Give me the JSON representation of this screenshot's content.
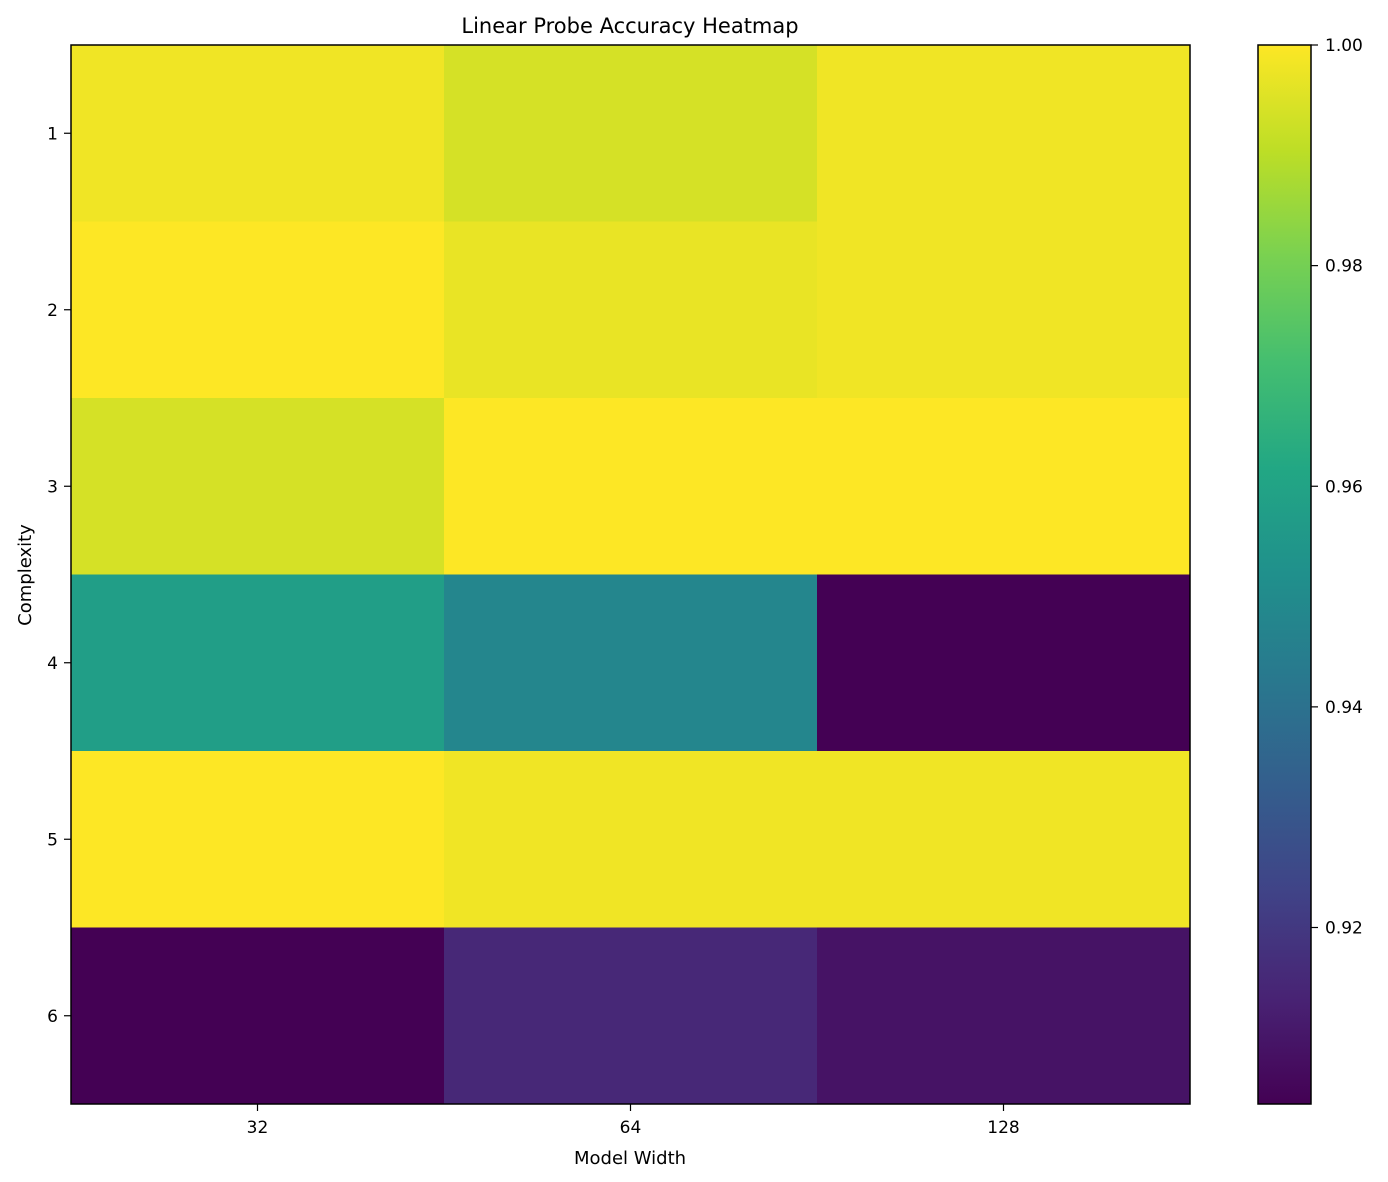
{
  "chart_data": {
    "type": "heatmap",
    "title": "Linear Probe Accuracy Heatmap",
    "xlabel": "Model Width",
    "ylabel": "Complexity",
    "x_categories": [
      "32",
      "64",
      "128"
    ],
    "y_categories": [
      "1",
      "2",
      "3",
      "4",
      "5",
      "6"
    ],
    "values": [
      [
        0.998,
        0.994,
        0.998
      ],
      [
        1.0,
        0.997,
        0.998
      ],
      [
        0.994,
        1.0,
        1.0
      ],
      [
        0.958,
        0.948,
        0.904
      ],
      [
        1.0,
        0.998,
        0.998
      ],
      [
        0.904,
        0.915,
        0.909
      ]
    ],
    "colormap": "viridis",
    "colorbar": {
      "min": 0.904,
      "max": 1.0,
      "ticks": [
        0.92,
        0.94,
        0.96,
        0.98,
        1.0
      ],
      "tick_labels": [
        "0.92",
        "0.94",
        "0.96",
        "0.98",
        "1.00"
      ]
    },
    "grid": false,
    "legend": "none"
  }
}
